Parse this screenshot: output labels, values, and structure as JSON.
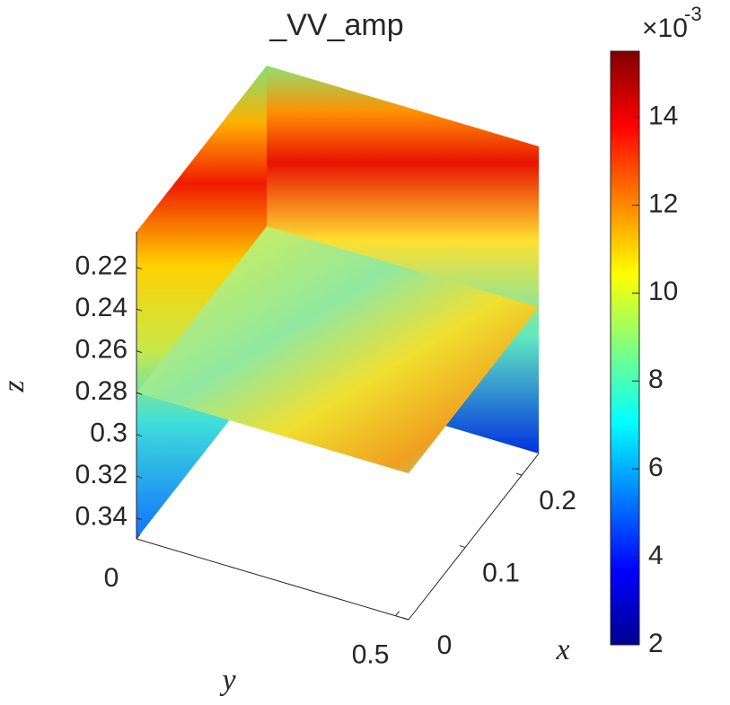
{
  "chart_data": {
    "type": "slice3d",
    "title": "_VV_amp",
    "xlabel": "x",
    "ylabel": "y",
    "zlabel": "z",
    "xlim": [
      0,
      0.23
    ],
    "xticks": [
      0,
      0.1,
      0.2
    ],
    "ylim": [
      0,
      0.525
    ],
    "yticks": [
      0,
      0.5
    ],
    "zlim": [
      0.203,
      0.35
    ],
    "zticks": [
      0.22,
      0.24,
      0.26,
      0.28,
      0.3,
      0.32,
      0.34
    ],
    "z_reversed": true,
    "slice_z": 0.28,
    "colorbar": {
      "lim": [
        2,
        15.5
      ],
      "ticks": [
        2,
        4,
        6,
        8,
        10,
        12,
        14
      ],
      "exponent_base": "×10",
      "exponent_power": "-3"
    }
  }
}
